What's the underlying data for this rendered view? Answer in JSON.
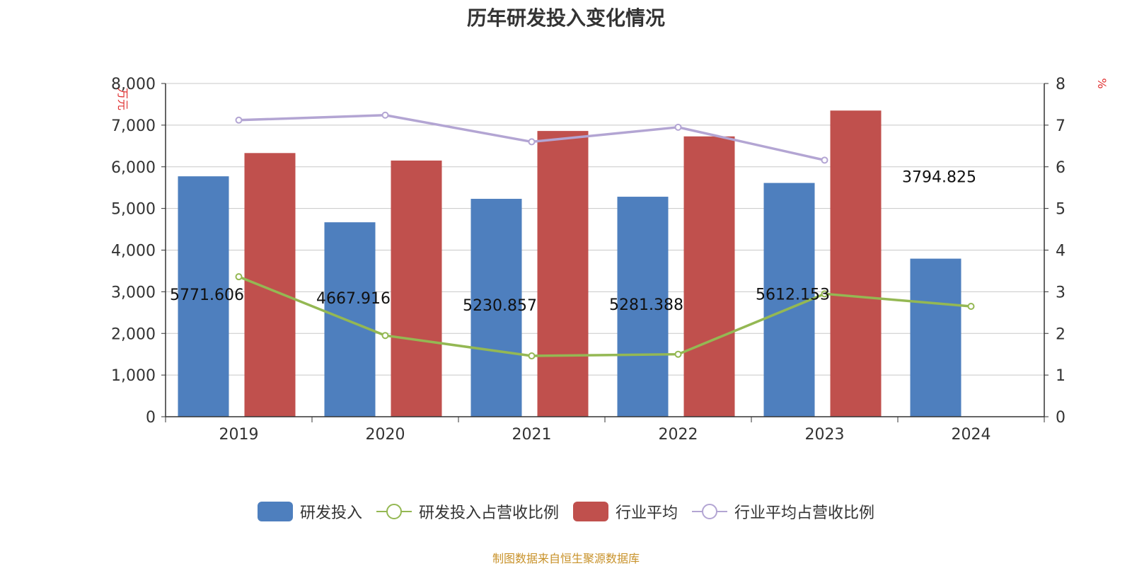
{
  "chart_data": {
    "type": "bar",
    "title": "历年研发投入变化情况",
    "categories": [
      "2019",
      "2020",
      "2021",
      "2022",
      "2023",
      "2024"
    ],
    "y_left": {
      "label": "万元",
      "ylim": [
        0,
        8000
      ],
      "ticks": [
        "0",
        "1,000",
        "2,000",
        "3,000",
        "4,000",
        "5,000",
        "6,000",
        "7,000",
        "8,000"
      ]
    },
    "y_right": {
      "label": "%",
      "ylim": [
        0,
        8
      ],
      "ticks": [
        "0",
        "1",
        "2",
        "3",
        "4",
        "5",
        "6",
        "7",
        "8"
      ]
    },
    "grid": true,
    "legend_position": "bottom",
    "series": [
      {
        "name": "研发投入",
        "kind": "bar",
        "axis": "left",
        "color": "#4e7fbe",
        "values": [
          5771.606,
          4667.916,
          5230.857,
          5281.388,
          5612.153,
          3794.825
        ],
        "labels": [
          "5771.606",
          "4667.916",
          "5230.857",
          "5281.388",
          "5612.153",
          "3794.825"
        ]
      },
      {
        "name": "研发投入占营收比例",
        "kind": "line",
        "axis": "right",
        "color": "#94b853",
        "values": [
          3.36,
          1.95,
          1.46,
          1.5,
          2.95,
          2.65
        ]
      },
      {
        "name": "行业平均",
        "kind": "bar",
        "axis": "left",
        "color": "#c0504d",
        "values": [
          6330,
          6150,
          6860,
          6730,
          7350,
          null
        ]
      },
      {
        "name": "行业平均占营收比例",
        "kind": "line",
        "axis": "right",
        "color": "#b3a5d3",
        "values": [
          7.12,
          7.24,
          6.6,
          6.95,
          6.16,
          null
        ]
      }
    ]
  },
  "source_text": "制图数据来自恒生聚源数据库"
}
